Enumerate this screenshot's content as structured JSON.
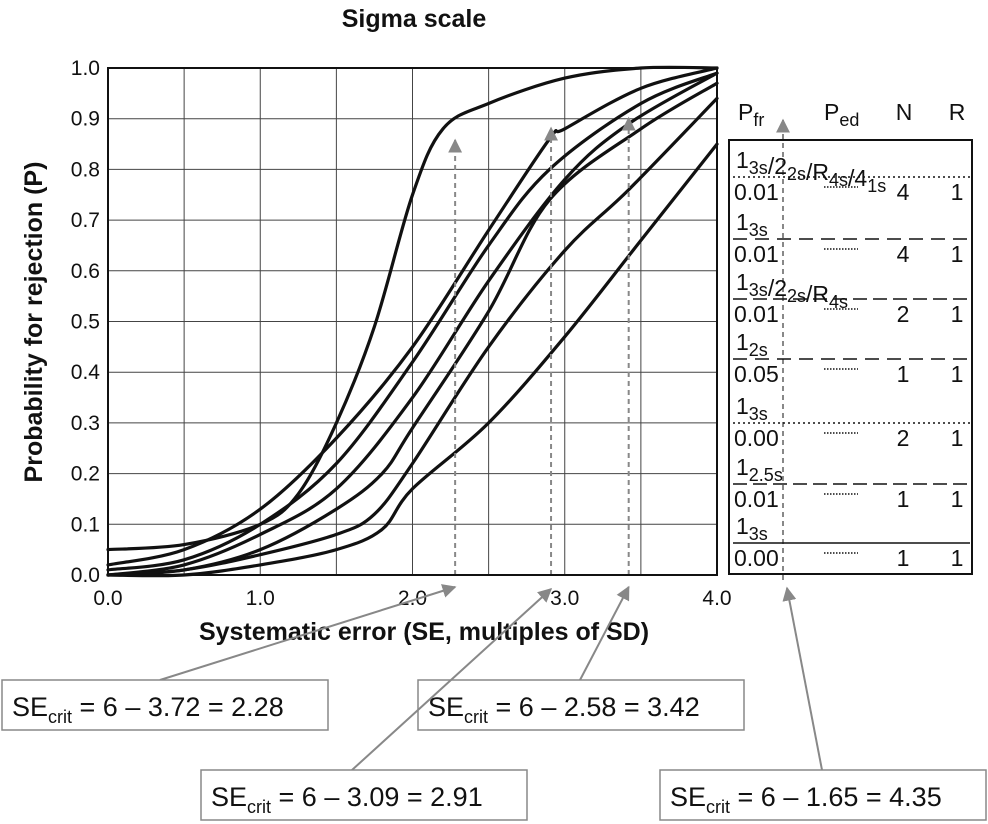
{
  "chart_data": {
    "type": "line",
    "title": "Sigma scale",
    "xlabel": "Systematic error (SE, multiples of SD)",
    "ylabel": "Probability for rejection (P)",
    "xlim": [
      0,
      4
    ],
    "ylim": [
      0,
      1
    ],
    "x_ticks": [
      "0.0",
      "1.0",
      "2.0",
      "3.0",
      "4.0"
    ],
    "y_ticks": [
      "0.0",
      "0.1",
      "0.2",
      "0.3",
      "0.4",
      "0.5",
      "0.6",
      "0.7",
      "0.8",
      "0.9",
      "1.0"
    ],
    "grid": true,
    "series": [
      {
        "x": [
          0,
          0.5,
          1.0,
          1.25,
          1.5,
          1.75,
          2.0,
          2.2,
          2.5,
          3.0,
          3.5,
          4.0
        ],
        "y": [
          0.05,
          0.06,
          0.1,
          0.16,
          0.3,
          0.49,
          0.75,
          0.88,
          0.93,
          0.98,
          1.0,
          1.0
        ]
      },
      {
        "x": [
          0,
          0.5,
          1.0,
          1.5,
          2.0,
          2.5,
          2.9,
          3.0,
          3.5,
          4.0
        ],
        "y": [
          0.02,
          0.05,
          0.13,
          0.27,
          0.45,
          0.68,
          0.86,
          0.88,
          0.96,
          1.0
        ]
      },
      {
        "x": [
          0,
          0.5,
          1.0,
          1.5,
          2.0,
          2.5,
          2.9,
          3.5,
          4.0
        ],
        "y": [
          0.01,
          0.03,
          0.1,
          0.22,
          0.42,
          0.65,
          0.8,
          0.93,
          0.99
        ]
      },
      {
        "x": [
          0,
          0.5,
          1.0,
          1.5,
          2.0,
          2.5,
          3.0,
          3.42,
          4.0
        ],
        "y": [
          0.0,
          0.02,
          0.08,
          0.17,
          0.35,
          0.58,
          0.78,
          0.89,
          0.99
        ]
      },
      {
        "x": [
          0,
          0.5,
          1.0,
          1.5,
          1.8,
          2.0,
          2.5,
          2.9,
          3.5,
          4.0
        ],
        "y": [
          0.0,
          0.01,
          0.05,
          0.13,
          0.2,
          0.29,
          0.52,
          0.74,
          0.88,
          0.97
        ]
      },
      {
        "x": [
          0,
          0.5,
          1.0,
          1.5,
          1.75,
          2.0,
          2.5,
          3.0,
          3.42,
          4.0
        ],
        "y": [
          0.0,
          0.01,
          0.04,
          0.08,
          0.12,
          0.22,
          0.45,
          0.64,
          0.76,
          0.94
        ]
      },
      {
        "x": [
          0,
          0.5,
          1.0,
          1.5,
          1.8,
          2.0,
          2.5,
          3.0,
          3.5,
          4.0
        ],
        "y": [
          0.0,
          0.0,
          0.02,
          0.05,
          0.09,
          0.17,
          0.3,
          0.47,
          0.66,
          0.85
        ]
      }
    ],
    "arrows_x": [
      2.28,
      2.91,
      3.42,
      4.35
    ]
  },
  "table": {
    "headers": {
      "pfr_main": "P",
      "pfr_sub": "fr",
      "ped_main": "P",
      "ped_sub": "ed",
      "n": "N",
      "r": "R"
    },
    "rows": [
      {
        "rule": [
          [
            "1",
            "3s"
          ],
          [
            "/2",
            "2s"
          ],
          [
            "/R",
            "4s"
          ],
          [
            "/4",
            "1s"
          ]
        ],
        "pfr": "0.01",
        "n": "4",
        "r": "1"
      },
      {
        "rule": [
          [
            "1",
            "3s"
          ]
        ],
        "pfr": "0.01",
        "n": "4",
        "r": "1"
      },
      {
        "rule": [
          [
            "1",
            "3s"
          ],
          [
            "/2",
            "2s"
          ],
          [
            "/R",
            "4s"
          ]
        ],
        "pfr": "0.01",
        "n": "2",
        "r": "1"
      },
      {
        "rule": [
          [
            "1",
            "2s"
          ]
        ],
        "pfr": "0.05",
        "n": "1",
        "r": "1"
      },
      {
        "rule": [
          [
            "1",
            "3s"
          ]
        ],
        "pfr": "0.00",
        "n": "2",
        "r": "1"
      },
      {
        "rule": [
          [
            "1",
            "2.5s"
          ]
        ],
        "pfr": "0.01",
        "n": "1",
        "r": "1"
      },
      {
        "rule": [
          [
            "1",
            "3s"
          ]
        ],
        "pfr": "0.00",
        "n": "1",
        "r": "1"
      }
    ]
  },
  "annotations": [
    {
      "main": "SE",
      "sub": "crit",
      "rest": " = 6 – 3.72 = 2.28"
    },
    {
      "main": "SE",
      "sub": "crit",
      "rest": " = 6 – 2.58 = 3.42"
    },
    {
      "main": "SE",
      "sub": "crit",
      "rest": " = 6 – 3.09 = 2.91"
    },
    {
      "main": "SE",
      "sub": "crit",
      "rest": " = 6 – 1.65 = 4.35"
    }
  ]
}
